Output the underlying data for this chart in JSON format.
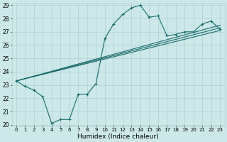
{
  "title": "",
  "xlabel": "Humidex (Indice chaleur)",
  "ylabel": "",
  "ylim": [
    20,
    29
  ],
  "xlim": [
    -0.5,
    23.5
  ],
  "yticks": [
    20,
    21,
    22,
    23,
    24,
    25,
    26,
    27,
    28,
    29
  ],
  "xticks": [
    0,
    1,
    2,
    3,
    4,
    5,
    6,
    7,
    8,
    9,
    10,
    11,
    12,
    13,
    14,
    15,
    16,
    17,
    18,
    19,
    20,
    21,
    22,
    23
  ],
  "bg_color": "#cce8e8",
  "grid_color": "#b0d0d0",
  "line_color": "#1a6b6b",
  "main_series": [
    23.3,
    22.9,
    22.6,
    22.1,
    20.1,
    20.4,
    20.4,
    22.3,
    22.3,
    23.1,
    26.5,
    27.6,
    28.3,
    28.8,
    29.0,
    28.1,
    28.2,
    26.7,
    26.8,
    27.0,
    27.0,
    27.6,
    27.8,
    27.2
  ],
  "line1_x": [
    0,
    23
  ],
  "line1_y": [
    23.3,
    27.1
  ],
  "line2_x": [
    0,
    23
  ],
  "line2_y": [
    23.3,
    27.3
  ],
  "line3_x": [
    0,
    23
  ],
  "line3_y": [
    23.3,
    27.5
  ],
  "marker": "+",
  "markersize": 3,
  "linewidth": 0.8
}
